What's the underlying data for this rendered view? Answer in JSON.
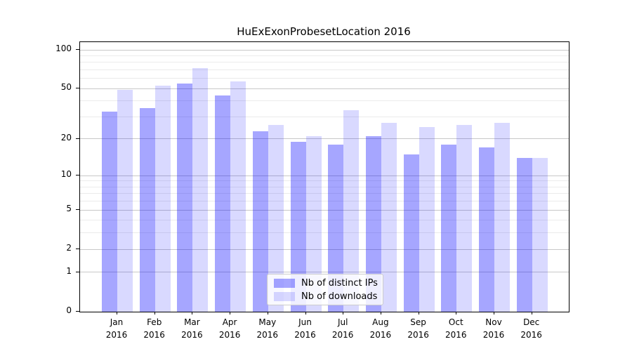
{
  "chart_data": {
    "type": "bar",
    "title": "HuExExonProbesetLocation 2016",
    "months": [
      "Jan",
      "Feb",
      "Mar",
      "Apr",
      "May",
      "Jun",
      "Jul",
      "Aug",
      "Sep",
      "Oct",
      "Nov",
      "Dec"
    ],
    "year": "2016",
    "series": [
      {
        "name": "Nb of distinct IPs",
        "color": "rgba(0,0,255,0.35)",
        "color_on_white": "#a6a6ff",
        "values": [
          33,
          35,
          55,
          44,
          23,
          19,
          18,
          21,
          15,
          18,
          17,
          14
        ]
      },
      {
        "name": "Nb of downloads",
        "color": "rgba(0,0,255,0.15)",
        "color_on_white": "#d9d9ff",
        "values": [
          49,
          53,
          72,
          57,
          26,
          21,
          34,
          27,
          25,
          26,
          27,
          14
        ]
      }
    ],
    "y_axis": {
      "scale": "log1p",
      "min": 0,
      "max": 100,
      "tick_values": [
        100,
        50,
        20,
        10,
        5,
        2,
        1,
        0
      ],
      "tick_labels": [
        "100",
        "50",
        "20",
        "10",
        "5",
        "2",
        "1",
        "0"
      ],
      "major_gridline_values": [
        1,
        2,
        5,
        10,
        20,
        50,
        100
      ],
      "minor_gridline_values": [
        3,
        4,
        6,
        7,
        8,
        9,
        30,
        40,
        60,
        70,
        80,
        90
      ]
    },
    "legend": {
      "position": "lower-center",
      "labels": [
        "Nb of distinct IPs",
        "Nb of downloads"
      ]
    },
    "grid": true
  },
  "colors": {
    "background": "#ffffff",
    "axis_spine": "#000000",
    "major_grid": "#c8c8c8",
    "minor_grid": "#ebebeb",
    "text": "#000000",
    "legend_border": "#cccccc"
  }
}
